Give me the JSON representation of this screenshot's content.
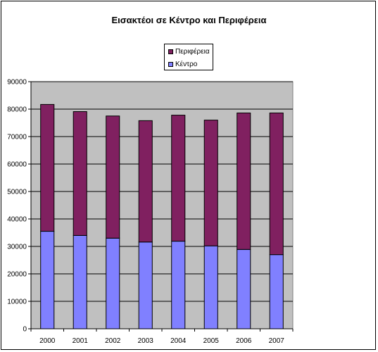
{
  "chart_data": {
    "type": "bar",
    "stacked": true,
    "title": "Εισακτέοι σε Κέντρο και Περιφέρεια",
    "categories": [
      "2000",
      "2001",
      "2002",
      "2003",
      "2004",
      "2005",
      "2006",
      "2007"
    ],
    "series": [
      {
        "name": "Κέντρο",
        "color": "#8080ff",
        "values": [
          35500,
          34000,
          33000,
          31600,
          31900,
          30200,
          28900,
          27000
        ]
      },
      {
        "name": "Περιφέρεια",
        "color": "#802060",
        "values": [
          46200,
          45100,
          44500,
          44200,
          45900,
          45800,
          49700,
          51600
        ]
      }
    ],
    "ylim": [
      0,
      90000
    ],
    "yticks": [
      "0",
      "10000",
      "20000",
      "30000",
      "40000",
      "50000",
      "60000",
      "70000",
      "80000",
      "90000"
    ],
    "grid": true,
    "plot_background": "#c0c0c0",
    "legend_position": "top-center",
    "legend_order": [
      "Περιφέρεια",
      "Κέντρο"
    ]
  }
}
